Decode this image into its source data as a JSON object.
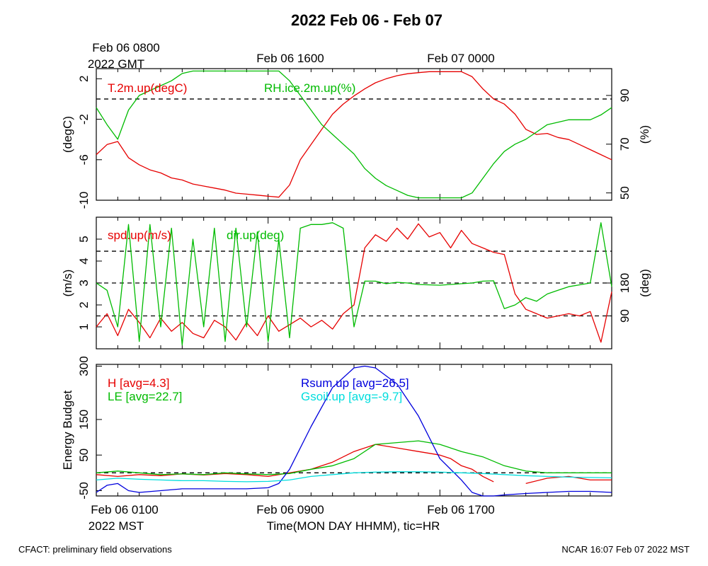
{
  "title": "2022 Feb 06 - Feb 07",
  "top_time_labels": [
    {
      "line1": "Feb 06 0800",
      "line2": "2022 GMT"
    },
    {
      "line1": "Feb 06 1600",
      "line2": ""
    },
    {
      "line1": "Feb 07 0000",
      "line2": ""
    }
  ],
  "bottom_time_labels": [
    {
      "line1": "Feb 06 0100",
      "line2": "2022 MST"
    },
    {
      "line1": "Feb 06 0900",
      "line2": ""
    },
    {
      "line1": "Feb 06 1700",
      "line2": ""
    }
  ],
  "xlabel": "Time(MON DAY HHMM), tic=HR",
  "footer_left": "CFACT: preliminary field observations",
  "footer_right": "NCAR 16:07 Feb 07 2022 MST",
  "colors": {
    "red": "#e60000",
    "green": "#00bb00",
    "blue": "#0000dd",
    "cyan": "#00dddd",
    "black": "#000000"
  },
  "chart_data": [
    {
      "type": "line",
      "panel": "temperature-humidity",
      "x_unit": "hours since Feb 06 0100 MST",
      "xlim": [
        0,
        24
      ],
      "left_axis": {
        "label": "(degC)",
        "ylim": [
          -10,
          3
        ],
        "ticks": [
          "-10",
          "-6",
          "-2",
          "2"
        ],
        "tick_values": [
          -10,
          -6,
          -2,
          2
        ]
      },
      "right_axis": {
        "label": "(%)",
        "ylim": [
          47,
          101
        ],
        "ticks": [
          "50",
          "70",
          "90"
        ],
        "tick_values": [
          50,
          70,
          90
        ]
      },
      "ref_lines": [
        {
          "axis": "left",
          "y": 0
        }
      ],
      "series": [
        {
          "name": "T.2m.up(degC)",
          "color": "red",
          "axis": "left",
          "x": [
            0,
            0.5,
            1,
            1.5,
            2,
            2.5,
            3,
            3.5,
            4,
            4.5,
            5,
            5.5,
            6,
            6.5,
            7,
            7.5,
            8,
            8.5,
            9,
            9.5,
            10,
            10.5,
            11,
            11.5,
            12,
            12.5,
            13,
            13.5,
            14,
            14.5,
            15,
            15.5,
            16,
            16.5,
            17,
            17.5,
            18,
            18.5,
            19,
            19.5,
            20,
            20.5,
            21,
            21.5,
            22,
            22.5,
            23,
            23.5,
            24
          ],
          "y": [
            -5.5,
            -4.5,
            -4.2,
            -5.8,
            -6.5,
            -7.0,
            -7.3,
            -7.8,
            -8.0,
            -8.4,
            -8.6,
            -8.8,
            -9.0,
            -9.3,
            -9.4,
            -9.5,
            -9.6,
            -9.7,
            -8.5,
            -6.0,
            -4.5,
            -3.0,
            -1.5,
            -0.5,
            0.3,
            1.0,
            1.6,
            2.0,
            2.3,
            2.5,
            2.6,
            2.7,
            2.7,
            2.7,
            2.7,
            2.2,
            1.0,
            0.0,
            -0.5,
            -1.5,
            -3.0,
            -3.5,
            -3.4,
            -3.8,
            -4.0,
            -4.5,
            -5.0,
            -5.5,
            -6.0
          ]
        },
        {
          "name": "RH.ice.2m.up(%)",
          "color": "green",
          "axis": "right",
          "x": [
            0,
            0.5,
            1,
            1.5,
            2,
            2.5,
            3,
            3.5,
            4,
            4.5,
            5,
            5.5,
            6,
            6.5,
            7,
            7.5,
            8,
            8.5,
            9,
            9.5,
            10,
            10.5,
            11,
            11.5,
            12,
            12.5,
            13,
            13.5,
            14,
            14.5,
            15,
            15.5,
            16,
            16.5,
            17,
            17.5,
            18,
            18.5,
            19,
            19.5,
            20,
            20.5,
            21,
            21.5,
            22,
            22.5,
            23,
            23.5,
            24
          ],
          "y": [
            85,
            78,
            72,
            84,
            90,
            92,
            94,
            96,
            99,
            100,
            100,
            100,
            100,
            100,
            100,
            100,
            100,
            100,
            96,
            90,
            84,
            78,
            74,
            70,
            66,
            60,
            56,
            53,
            51,
            49,
            48,
            48,
            48,
            48,
            48,
            50,
            56,
            62,
            67,
            70,
            72,
            75,
            78,
            79,
            80,
            80,
            80,
            82,
            85
          ]
        }
      ]
    },
    {
      "type": "line",
      "panel": "wind",
      "x_unit": "hours since Feb 06 0100 MST",
      "xlim": [
        0,
        24
      ],
      "left_axis": {
        "label": "(m/s)",
        "ylim": [
          0,
          6
        ],
        "ticks": [
          "1",
          "2",
          "3",
          "4",
          "5"
        ],
        "tick_values": [
          1,
          2,
          3,
          4,
          5
        ]
      },
      "right_axis": {
        "label": "(deg)",
        "ylim": [
          0,
          360
        ],
        "ticks": [
          "90",
          "180"
        ],
        "tick_values": [
          90,
          180
        ]
      },
      "ref_lines": [
        {
          "axis": "left",
          "y": 1.5
        },
        {
          "axis": "left",
          "y": 3.0
        },
        {
          "axis": "left",
          "y": 4.45
        }
      ],
      "series": [
        {
          "name": "spd.up(m/s)",
          "color": "red",
          "axis": "left",
          "x": [
            0,
            0.5,
            1,
            1.5,
            2,
            2.5,
            3,
            3.5,
            4,
            4.5,
            5,
            5.5,
            6,
            6.5,
            7,
            7.5,
            8,
            8.5,
            9,
            9.5,
            10,
            10.5,
            11,
            11.5,
            12,
            12.5,
            13,
            13.5,
            14,
            14.5,
            15,
            15.5,
            16,
            16.5,
            17,
            17.5,
            18,
            18.5,
            19,
            19.5,
            20,
            20.5,
            21,
            21.5,
            22,
            22.5,
            23,
            23.5,
            24
          ],
          "y": [
            1.0,
            1.6,
            0.6,
            1.8,
            1.2,
            0.5,
            1.4,
            0.8,
            1.2,
            0.7,
            0.5,
            1.3,
            1.0,
            0.4,
            1.2,
            0.6,
            1.5,
            0.8,
            1.1,
            1.4,
            1.0,
            1.3,
            0.9,
            1.6,
            2.0,
            4.6,
            5.2,
            4.9,
            5.5,
            5.0,
            5.7,
            5.1,
            5.3,
            4.6,
            5.4,
            4.8,
            4.6,
            4.4,
            4.3,
            2.5,
            1.8,
            1.6,
            1.4,
            1.5,
            1.6,
            1.5,
            1.7,
            0.3,
            2.6
          ]
        },
        {
          "name": "dir.up(deg)",
          "color": "green",
          "axis": "right",
          "x": [
            0,
            0.5,
            1,
            1.5,
            2,
            2.5,
            3,
            3.5,
            4,
            4.5,
            5,
            5.5,
            6,
            6.5,
            7,
            7.5,
            8,
            8.5,
            9,
            9.5,
            10,
            10.5,
            11,
            11.5,
            12,
            12.5,
            13,
            13.5,
            14,
            14.5,
            15,
            15.5,
            16,
            16.5,
            17,
            17.5,
            18,
            18.5,
            19,
            19.5,
            20,
            20.5,
            21,
            21.5,
            22,
            22.5,
            23,
            23.5,
            24
          ],
          "y": [
            180,
            160,
            60,
            340,
            20,
            340,
            60,
            330,
            10,
            300,
            60,
            330,
            20,
            330,
            60,
            320,
            20,
            300,
            30,
            330,
            340,
            340,
            345,
            330,
            60,
            185,
            185,
            178,
            182,
            180,
            176,
            175,
            174,
            176,
            178,
            180,
            185,
            186,
            110,
            120,
            140,
            130,
            150,
            160,
            170,
            175,
            180,
            345,
            170
          ]
        }
      ]
    },
    {
      "type": "line",
      "panel": "energy-budget",
      "x_unit": "hours since Feb 06 0100 MST",
      "xlim": [
        0,
        24
      ],
      "left_axis": {
        "label": "Energy Budget",
        "ylim": [
          -65,
          305
        ],
        "ticks": [
          "-50",
          "50",
          "150",
          "300"
        ],
        "tick_values": [
          -50,
          50,
          150,
          300
        ]
      },
      "ref_lines": [
        {
          "axis": "left",
          "y": 0
        }
      ],
      "series": [
        {
          "name": "H",
          "legend": "H [avg=4.3]",
          "color": "red",
          "axis": "left",
          "x": [
            0,
            1,
            2,
            3,
            4,
            5,
            6,
            7,
            8,
            9,
            10,
            11,
            12,
            13,
            14,
            15,
            16,
            16.5,
            17,
            17.5,
            18,
            18.5,
            19,
            19.5,
            20,
            21,
            22,
            23,
            24
          ],
          "y": [
            -5,
            -10,
            -5,
            -8,
            -3,
            -6,
            -2,
            -5,
            -10,
            0,
            10,
            30,
            60,
            80,
            70,
            60,
            50,
            40,
            20,
            10,
            -10,
            -25,
            null,
            null,
            -30,
            -15,
            -10,
            -20,
            -20
          ]
        },
        {
          "name": "LE",
          "legend": "LE [avg=22.7]",
          "color": "green",
          "axis": "left",
          "x": [
            0,
            1,
            2,
            3,
            4,
            5,
            6,
            7,
            8,
            9,
            10,
            11,
            12,
            13,
            14,
            15,
            16,
            17,
            18,
            19,
            20,
            21,
            22,
            23,
            24
          ],
          "y": [
            0,
            5,
            0,
            -5,
            -3,
            -5,
            0,
            -3,
            -5,
            -2,
            10,
            20,
            40,
            80,
            85,
            90,
            80,
            60,
            45,
            20,
            5,
            0,
            0,
            0,
            0
          ]
        },
        {
          "name": "Rsum.up",
          "legend": "Rsum.up [avg=26.5]",
          "color": "blue",
          "axis": "left",
          "x": [
            0,
            0.5,
            1,
            1.5,
            2,
            3,
            4,
            5,
            6,
            7,
            8,
            8.5,
            9,
            10,
            11,
            12,
            12.5,
            13,
            14,
            15,
            16,
            17,
            17.5,
            18,
            18.5,
            19,
            20,
            21,
            22,
            23,
            24
          ],
          "y": [
            -55,
            -35,
            -30,
            -50,
            -55,
            -50,
            -45,
            -45,
            -45,
            -45,
            -42,
            -30,
            10,
            130,
            240,
            295,
            300,
            295,
            250,
            160,
            40,
            -20,
            -55,
            -65,
            -65,
            -62,
            -58,
            -55,
            -52,
            -52,
            -55
          ]
        },
        {
          "name": "Gsoil.up",
          "legend": "Gsoil.up [avg=-9.7]",
          "color": "cyan",
          "axis": "left",
          "x": [
            0,
            1,
            2,
            3,
            4,
            5,
            6,
            7,
            8,
            9,
            10,
            11,
            12,
            13,
            14,
            15,
            16,
            17,
            18,
            19,
            20,
            21,
            22,
            23,
            24
          ],
          "y": [
            -20,
            -15,
            -18,
            -20,
            -22,
            -22,
            -24,
            -25,
            -24,
            -20,
            -10,
            -5,
            0,
            2,
            3,
            3,
            2,
            0,
            -2,
            -5,
            -8,
            -10,
            -12,
            -13,
            -14
          ]
        }
      ]
    }
  ]
}
